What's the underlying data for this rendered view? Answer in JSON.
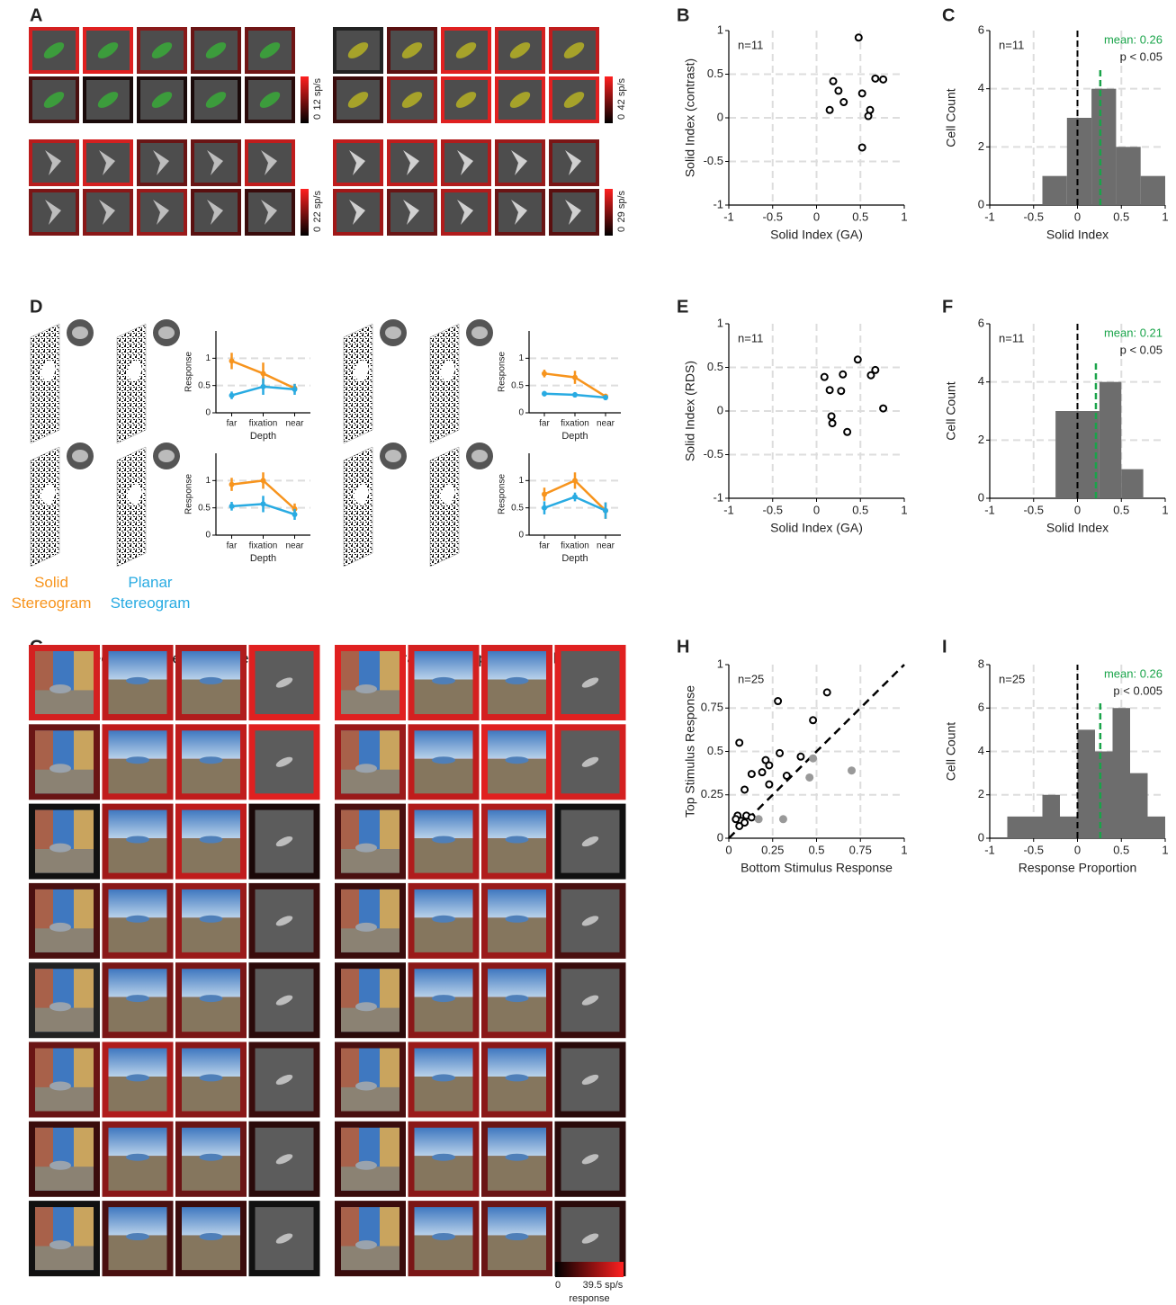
{
  "panel_labels": [
    "A",
    "B",
    "C",
    "D",
    "E",
    "F",
    "G",
    "H",
    "I"
  ],
  "panel_a": {
    "groups": [
      {
        "border_colors": [
          [
            "#d42020",
            "#e02020",
            "#8a1a1a",
            "#6a1515",
            "#701515"
          ],
          [
            "#4a1010",
            "#1a0a0a",
            "#1a0a0a",
            "#1a0a0a",
            "#2a0a0a"
          ]
        ]
      },
      {
        "border_colors": [
          [
            "#222222",
            "#5a1010",
            "#e02020",
            "#d42020",
            "#c01c1c"
          ],
          [
            "#3a0c0c",
            "#a01818",
            "#e02020",
            "#e02020",
            "#e02020"
          ]
        ]
      },
      {
        "border_colors": [
          [
            "#b81c1c",
            "#d42020",
            "#6a1515",
            "#6a1515",
            "#c01c1c"
          ],
          [
            "#7a1616",
            "#8a1818",
            "#9a1a1a",
            "#5a1010",
            "#3a0c0c"
          ]
        ]
      },
      {
        "border_colors": [
          [
            "#c01c1c",
            "#c01c1c",
            "#b01c1c",
            "#9a1a1a",
            "#7a1616"
          ],
          [
            "#a01818",
            "#6a1515",
            "#b01c1c",
            "#6a1515",
            "#5a1010"
          ]
        ]
      }
    ],
    "colorbars": [
      {
        "min": "0",
        "max": "12 sp/s"
      },
      {
        "min": "0",
        "max": "42 sp/s"
      },
      {
        "min": "0",
        "max": "22 sp/s"
      },
      {
        "min": "0",
        "max": "29 sp/s"
      }
    ]
  },
  "panel_g": {
    "titles": [
      "Reflective Shapes  (chrome-like)",
      "Refractive Shapes (glass-like)"
    ],
    "groups": [
      {
        "border_colors": [
          [
            "#d42020",
            "#c01c1c",
            "#b01c1c",
            "#e02020"
          ],
          [
            "#6a1515",
            "#c01c1c",
            "#c01c1c",
            "#e02020"
          ],
          [
            "#111111",
            "#a01818",
            "#c01c1c",
            "#1a0808"
          ],
          [
            "#4a1010",
            "#8a1818",
            "#9a1a1a",
            "#3a0c0c"
          ],
          [
            "#222222",
            "#7a1616",
            "#7a1616",
            "#2a0a0a"
          ],
          [
            "#6a1515",
            "#b01c1c",
            "#8a1818",
            "#3a0c0c"
          ],
          [
            "#3a0c0c",
            "#8a1818",
            "#6a1515",
            "#2a0a0a"
          ],
          [
            "#111111",
            "#4a1010",
            "#3a0c0c",
            "#111111"
          ]
        ]
      },
      {
        "border_colors": [
          [
            "#e02020",
            "#d42020",
            "#d42020",
            "#e02020"
          ],
          [
            "#9a1a1a",
            "#c01c1c",
            "#e02020",
            "#d42020"
          ],
          [
            "#4a1010",
            "#b01c1c",
            "#b01c1c",
            "#111111"
          ],
          [
            "#3a0c0c",
            "#9a1a1a",
            "#9a1a1a",
            "#4a1010"
          ],
          [
            "#2a0a0a",
            "#8a1818",
            "#8a1818",
            "#3a0c0c"
          ],
          [
            "#4a1010",
            "#9a1a1a",
            "#8a1818",
            "#2a0a0a"
          ],
          [
            "#3a0c0c",
            "#8a1818",
            "#6a1515",
            "#2a0a0a"
          ],
          [
            "#3a0c0c",
            "#7a1616",
            "#6a1515",
            "#2a0a0a"
          ]
        ]
      }
    ],
    "colorbar": {
      "min": "0",
      "max": "39.5 sp/s",
      "label": "response"
    }
  },
  "chart_data": [
    {
      "type": "scatter",
      "n_label": "n=11",
      "x_label": "Solid Index (GA)",
      "y_label": "Solid Index (contrast)",
      "xlim": [
        -1,
        1
      ],
      "xticks": [
        -1,
        -0.5,
        0,
        0.5,
        1
      ],
      "ylim": [
        -1,
        1
      ],
      "yticks": [
        -1,
        -0.5,
        0,
        0.5,
        1
      ],
      "grid": true,
      "series": [
        {
          "color": "#000000",
          "filled": false,
          "x": [
            0.48,
            0.19,
            0.25,
            0.31,
            0.15,
            0.52,
            0.67,
            0.76,
            0.61,
            0.59,
            0.52
          ],
          "y": [
            0.92,
            0.42,
            0.31,
            0.18,
            0.09,
            0.28,
            0.45,
            0.44,
            0.09,
            0.02,
            -0.34
          ]
        }
      ]
    },
    {
      "type": "histogram",
      "n_label": "n=11",
      "mean_label": "mean: 0.26",
      "p_label": "p < 0.05",
      "x_label": "Solid Index",
      "y_label": "Cell Count",
      "bins": [
        -0.4,
        -0.12,
        0.16,
        0.44,
        0.72,
        1.0
      ],
      "values": [
        1,
        3,
        4,
        2,
        1
      ],
      "color": "#6d6d6d",
      "ref_line": 0,
      "mean_line": 0.26,
      "xlim": [
        -1,
        1
      ],
      "xticks": [
        -1,
        -0.5,
        0,
        0.5,
        1
      ],
      "ylim": [
        0,
        6
      ],
      "yticks": [
        0,
        2,
        4,
        6
      ],
      "grid": true
    },
    {
      "type": "line",
      "x_label": "Depth",
      "y_label": "Response",
      "categories": [
        "far",
        "fixation",
        "near"
      ],
      "ylim": [
        0,
        1.5
      ],
      "yticks": [
        0,
        0.5,
        1
      ],
      "grid": true,
      "series": [
        {
          "name": "Solid Stereogram",
          "color": "#f7941d",
          "values": [
            0.95,
            0.72,
            0.45
          ],
          "errors": [
            0.15,
            0.2,
            0.08
          ]
        },
        {
          "name": "Planar Stereogram",
          "color": "#29abe2",
          "values": [
            0.32,
            0.48,
            0.43
          ],
          "errors": [
            0.07,
            0.15,
            0.1
          ]
        }
      ]
    },
    {
      "type": "line",
      "x_label": "Depth",
      "y_label": "Response",
      "categories": [
        "far",
        "fixation",
        "near"
      ],
      "ylim": [
        0,
        1.5
      ],
      "yticks": [
        0,
        0.5,
        1
      ],
      "grid": true,
      "series": [
        {
          "color": "#f7941d",
          "values": [
            0.93,
            1.0,
            0.48
          ],
          "errors": [
            0.12,
            0.15,
            0.1
          ]
        },
        {
          "color": "#29abe2",
          "values": [
            0.53,
            0.57,
            0.38
          ],
          "errors": [
            0.08,
            0.15,
            0.1
          ]
        }
      ]
    },
    {
      "type": "line",
      "x_label": "Depth",
      "y_label": "Response",
      "categories": [
        "far",
        "fixation",
        "near"
      ],
      "ylim": [
        0,
        1.5
      ],
      "yticks": [
        0,
        0.5,
        1
      ],
      "grid": true,
      "series": [
        {
          "color": "#f7941d",
          "values": [
            0.72,
            0.65,
            0.3
          ],
          "errors": [
            0.07,
            0.12,
            0.05
          ]
        },
        {
          "color": "#29abe2",
          "values": [
            0.35,
            0.33,
            0.28
          ],
          "errors": [
            0.05,
            0.05,
            0.05
          ]
        }
      ]
    },
    {
      "type": "line",
      "x_label": "Depth",
      "y_label": "Response",
      "categories": [
        "far",
        "fixation",
        "near"
      ],
      "ylim": [
        0,
        1.5
      ],
      "yticks": [
        0,
        0.5,
        1
      ],
      "grid": true,
      "series": [
        {
          "color": "#f7941d",
          "values": [
            0.75,
            1.0,
            0.45
          ],
          "errors": [
            0.12,
            0.15,
            0.15
          ]
        },
        {
          "color": "#29abe2",
          "values": [
            0.5,
            0.7,
            0.45
          ],
          "errors": [
            0.12,
            0.08,
            0.15
          ]
        }
      ]
    },
    {
      "type": "scatter",
      "n_label": "n=11",
      "x_label": "Solid Index (GA)",
      "y_label": "Solid Index (RDS)",
      "xlim": [
        -1,
        1
      ],
      "xticks": [
        -1,
        -0.5,
        0,
        0.5,
        1
      ],
      "ylim": [
        -1,
        1
      ],
      "yticks": [
        -1,
        -0.5,
        0,
        0.5,
        1
      ],
      "grid": true,
      "series": [
        {
          "color": "#000000",
          "filled": false,
          "x": [
            0.47,
            0.09,
            0.3,
            0.15,
            0.28,
            0.17,
            0.18,
            0.35,
            0.62,
            0.67,
            0.76
          ],
          "y": [
            0.59,
            0.39,
            0.42,
            0.24,
            0.23,
            -0.06,
            -0.14,
            -0.24,
            0.41,
            0.47,
            0.03
          ]
        }
      ]
    },
    {
      "type": "histogram",
      "n_label": "n=11",
      "mean_label": "mean: 0.21",
      "p_label": "p < 0.05",
      "x_label": "Solid Index",
      "y_label": "Cell Count",
      "bins": [
        -0.25,
        0,
        0.25,
        0.5,
        0.75
      ],
      "values": [
        3,
        3,
        4,
        1
      ],
      "color": "#6d6d6d",
      "ref_line": 0,
      "mean_line": 0.21,
      "xlim": [
        -1,
        1
      ],
      "xticks": [
        -1,
        -0.5,
        0,
        0.5,
        1
      ],
      "ylim": [
        0,
        6
      ],
      "yticks": [
        0,
        2,
        4,
        6
      ],
      "grid": true
    },
    {
      "type": "scatter",
      "n_label": "n=25",
      "x_label": "Bottom Stimulus Response",
      "y_label": "Top Stimulus Response",
      "xlim": [
        0,
        1
      ],
      "xticks": [
        0,
        0.25,
        0.5,
        0.75,
        1
      ],
      "ylim": [
        0,
        1
      ],
      "yticks": [
        0,
        0.25,
        0.5,
        0.75,
        1
      ],
      "grid": true,
      "identity_line": true,
      "series": [
        {
          "color": "#000000",
          "filled": false,
          "x": [
            0.28,
            0.56,
            0.48,
            0.06,
            0.29,
            0.41,
            0.09,
            0.13,
            0.19,
            0.21,
            0.23,
            0.33,
            0.23,
            0.05,
            0.07,
            0.1,
            0.13,
            0.06,
            0.09,
            0.04
          ],
          "y": [
            0.79,
            0.84,
            0.68,
            0.55,
            0.49,
            0.47,
            0.28,
            0.37,
            0.38,
            0.45,
            0.42,
            0.36,
            0.31,
            0.13,
            0.1,
            0.13,
            0.12,
            0.07,
            0.09,
            0.11
          ]
        },
        {
          "color": "#999999",
          "filled": true,
          "x": [
            0.48,
            0.46,
            0.7,
            0.17,
            0.31
          ],
          "y": [
            0.46,
            0.35,
            0.39,
            0.11,
            0.11
          ]
        }
      ]
    },
    {
      "type": "histogram",
      "n_label": "n=25",
      "mean_label": "mean: 0.26",
      "p_label": "p < 0.005",
      "x_label": "Response Proportion",
      "y_label": "Cell Count",
      "bins": [
        -0.8,
        -0.6,
        -0.4,
        -0.2,
        0,
        0.2,
        0.4,
        0.6,
        0.8,
        1.0
      ],
      "values": [
        1,
        1,
        2,
        1,
        5,
        4,
        6,
        3,
        1
      ],
      "color": "#6d6d6d",
      "ref_line": 0,
      "mean_line": 0.26,
      "xlim": [
        -1,
        1
      ],
      "xticks": [
        -1,
        -0.5,
        0,
        0.5,
        1
      ],
      "ylim": [
        0,
        8
      ],
      "yticks": [
        0,
        2,
        4,
        6,
        8
      ],
      "grid": true
    }
  ]
}
